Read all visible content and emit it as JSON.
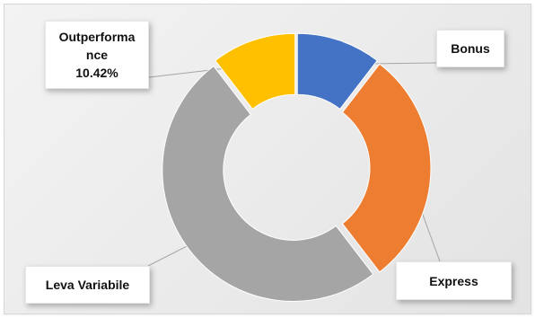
{
  "chart_data": {
    "type": "pie",
    "variant": "donut",
    "title": "",
    "legend": "none",
    "slices": [
      {
        "name": "Bonus",
        "value": 10.42,
        "color": "#4472c4",
        "label": "Bonus"
      },
      {
        "name": "Express",
        "value": 29.17,
        "color": "#ed7d31",
        "label": "Express"
      },
      {
        "name": "Leva Variabile",
        "value": 50.0,
        "color": "#a5a5a5",
        "label": "Leva Variabile"
      },
      {
        "name": "Outperformance",
        "value": 10.42,
        "color": "#ffc000",
        "label": "Outperforma\nnce\n10.42%"
      }
    ]
  }
}
